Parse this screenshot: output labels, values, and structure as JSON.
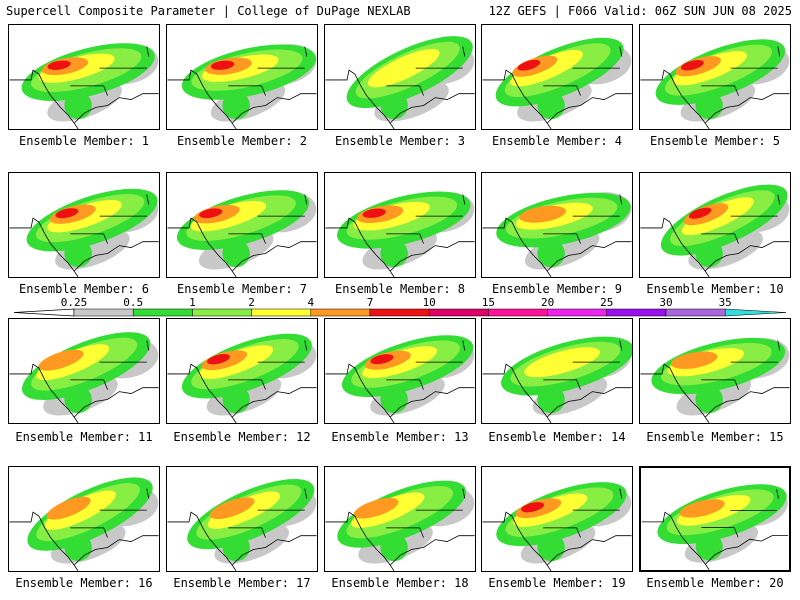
{
  "header": {
    "left": "Supercell Composite Parameter | College of DuPage NEXLAB",
    "right": "12Z GEFS | F066 Valid: 06Z SUN JUN 08 2025"
  },
  "legend": {
    "levels": [
      "0.25",
      "0.5",
      "1",
      "2",
      "4",
      "7",
      "10",
      "15",
      "20",
      "25",
      "30",
      "35"
    ],
    "colors": [
      "#c8c8c8",
      "#33dd33",
      "#88ee44",
      "#ffff33",
      "#ff9922",
      "#ee1111",
      "#dd0066",
      "#ff1199",
      "#ee22ee",
      "#9911ee",
      "#aa66dd",
      "#33dddd"
    ]
  },
  "members": [
    {
      "label": "Ensemble Member: 1",
      "max": "red"
    },
    {
      "label": "Ensemble Member: 2",
      "max": "red"
    },
    {
      "label": "Ensemble Member: 3",
      "max": "yellow"
    },
    {
      "label": "Ensemble Member: 4",
      "max": "red"
    },
    {
      "label": "Ensemble Member: 5",
      "max": "red"
    },
    {
      "label": "Ensemble Member: 6",
      "max": "red"
    },
    {
      "label": "Ensemble Member: 7",
      "max": "red"
    },
    {
      "label": "Ensemble Member: 8",
      "max": "red"
    },
    {
      "label": "Ensemble Member: 9",
      "max": "orange"
    },
    {
      "label": "Ensemble Member: 10",
      "max": "red"
    },
    {
      "label": "Ensemble Member: 11",
      "max": "orange"
    },
    {
      "label": "Ensemble Member: 12",
      "max": "red"
    },
    {
      "label": "Ensemble Member: 13",
      "max": "red"
    },
    {
      "label": "Ensemble Member: 14",
      "max": "yellow"
    },
    {
      "label": "Ensemble Member: 15",
      "max": "orange"
    },
    {
      "label": "Ensemble Member: 16",
      "max": "orange"
    },
    {
      "label": "Ensemble Member: 17",
      "max": "orange"
    },
    {
      "label": "Ensemble Member: 18",
      "max": "orange"
    },
    {
      "label": "Ensemble Member: 19",
      "max": "red"
    },
    {
      "label": "Ensemble Member: 20",
      "max": "orange",
      "selected": true
    }
  ]
}
